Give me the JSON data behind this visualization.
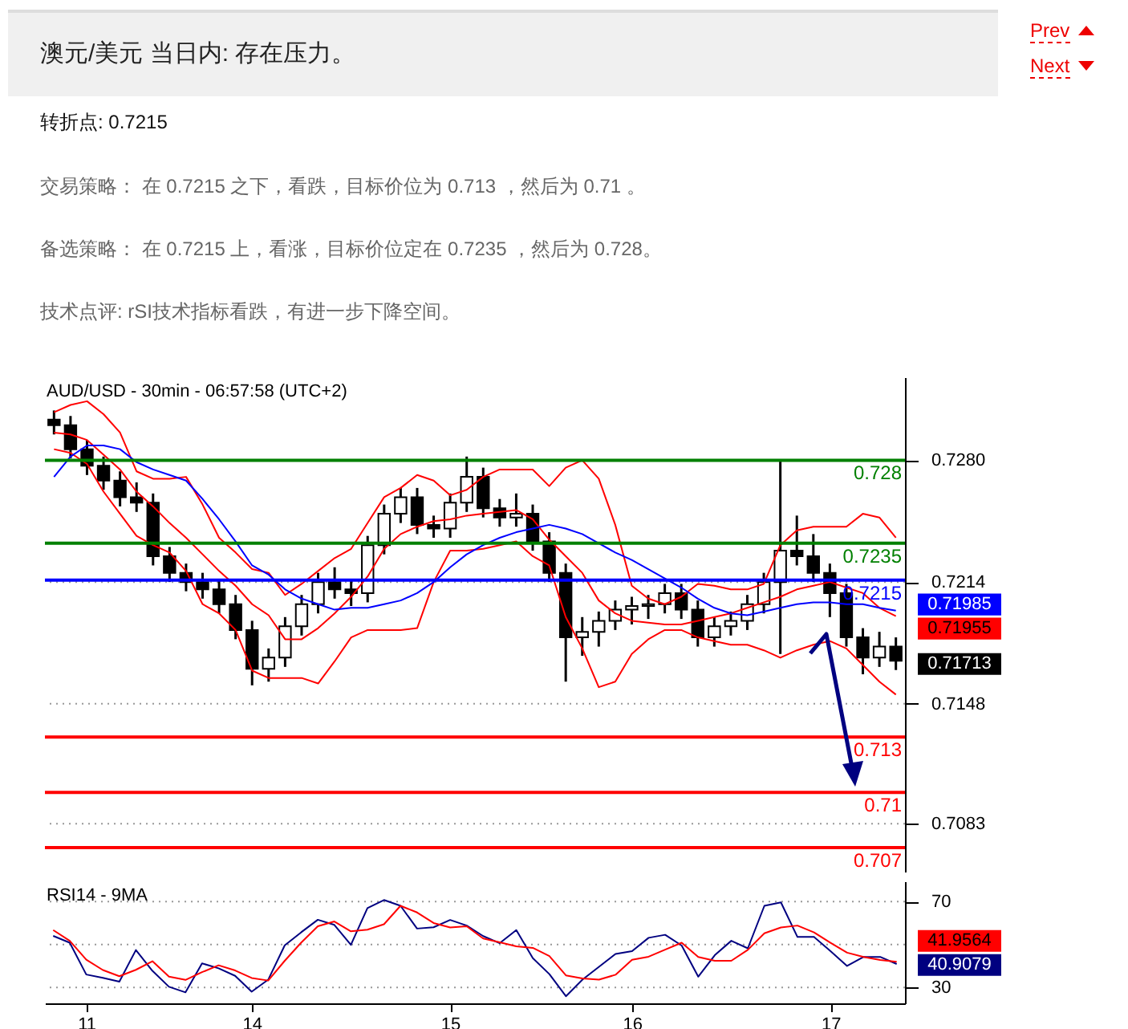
{
  "chart_data": [
    {
      "type": "candlestick",
      "title": "澳元/美元 当日内: 存在压力。",
      "subtitle": "AUD/USD - 30min - 06:57:58 (UTC+2)",
      "annotations": [
        "转折点: 0.7215",
        "交易策略： 在 0.7215 之下，看跌，目标价位为 0.713 ，然后为 0.71 。",
        "备选策略： 在 0.7215 上，看涨，目标价位定在 0.7235 ，然后为 0.728。",
        "技术点评: rSI技术指标看跌，有进一步下降空间。",
        "Prev",
        "Next"
      ],
      "color": "#000000",
      "categories": [
        null,
        null,
        "11",
        null,
        null,
        null,
        null,
        null,
        null,
        null,
        null,
        null,
        "14",
        null,
        null,
        null,
        null,
        null,
        null,
        null,
        null,
        null,
        null,
        null,
        "15",
        null,
        null,
        null,
        null,
        null,
        null,
        null,
        null,
        null,
        null,
        "16",
        null,
        null,
        null,
        null,
        null,
        null,
        null,
        null,
        null,
        null,
        null,
        "17",
        null,
        null,
        null,
        null
      ],
      "ohlc": [
        [
          0.7302,
          0.7307,
          0.7294,
          0.7299
        ],
        [
          0.7299,
          0.7304,
          0.7281,
          0.7286
        ],
        [
          0.7286,
          0.7291,
          0.7272,
          0.7277
        ],
        [
          0.7277,
          0.7282,
          0.7264,
          0.7269
        ],
        [
          0.7269,
          0.7274,
          0.7255,
          0.726
        ],
        [
          0.726,
          0.7268,
          0.7252,
          0.7257
        ],
        [
          0.7257,
          0.7262,
          0.7223,
          0.7228
        ],
        [
          0.7228,
          0.7233,
          0.7214,
          0.7219
        ],
        [
          0.7219,
          0.7224,
          0.7209,
          0.7214
        ],
        [
          0.7214,
          0.7219,
          0.7205,
          0.721
        ],
        [
          0.721,
          0.7215,
          0.7197,
          0.7202
        ],
        [
          0.7202,
          0.7207,
          0.7183,
          0.7188
        ],
        [
          0.7188,
          0.7193,
          0.7158,
          0.7167
        ],
        [
          0.7167,
          0.7178,
          0.716,
          0.7173
        ],
        [
          0.7173,
          0.7195,
          0.7168,
          0.719
        ],
        [
          0.719,
          0.7207,
          0.7185,
          0.7202
        ],
        [
          0.7202,
          0.7219,
          0.7197,
          0.7214
        ],
        [
          0.7214,
          0.7222,
          0.7205,
          0.721
        ],
        [
          0.721,
          0.7215,
          0.7201,
          0.7208
        ],
        [
          0.7208,
          0.7239,
          0.7203,
          0.7234
        ],
        [
          0.7234,
          0.7256,
          0.7229,
          0.7251
        ],
        [
          0.7251,
          0.7265,
          0.7246,
          0.726
        ],
        [
          0.726,
          0.7265,
          0.724,
          0.7245
        ],
        [
          0.7245,
          0.725,
          0.7238,
          0.7243
        ],
        [
          0.7243,
          0.7262,
          0.7238,
          0.7257
        ],
        [
          0.7257,
          0.7282,
          0.7252,
          0.7271
        ],
        [
          0.7271,
          0.7276,
          0.7249,
          0.7254
        ],
        [
          0.7254,
          0.7259,
          0.7244,
          0.7249
        ],
        [
          0.7249,
          0.7262,
          0.7244,
          0.7251
        ],
        [
          0.7251,
          0.7256,
          0.7231,
          0.7236
        ],
        [
          0.7236,
          0.7241,
          0.7214,
          0.7219
        ],
        [
          0.7219,
          0.7224,
          0.716,
          0.7184
        ],
        [
          0.7184,
          0.7195,
          0.7174,
          0.7187
        ],
        [
          0.7187,
          0.7198,
          0.7179,
          0.7193
        ],
        [
          0.7193,
          0.7204,
          0.7188,
          0.7199
        ],
        [
          0.7199,
          0.7206,
          0.7191,
          0.7201
        ],
        [
          0.7201,
          0.7207,
          0.7194,
          0.7202
        ],
        [
          0.7202,
          0.7213,
          0.7197,
          0.7208
        ],
        [
          0.7208,
          0.7213,
          0.7194,
          0.7199
        ],
        [
          0.7199,
          0.7204,
          0.7179,
          0.7184
        ],
        [
          0.7184,
          0.7195,
          0.7179,
          0.719
        ],
        [
          0.719,
          0.7198,
          0.7185,
          0.7193
        ],
        [
          0.7193,
          0.7207,
          0.7188,
          0.7202
        ],
        [
          0.7202,
          0.7219,
          0.7197,
          0.7214
        ],
        [
          0.7214,
          0.728,
          0.7175,
          0.7231
        ],
        [
          0.7231,
          0.725,
          0.7223,
          0.7228
        ],
        [
          0.7228,
          0.724,
          0.7214,
          0.7219
        ],
        [
          0.7219,
          0.7224,
          0.7195,
          0.7208
        ],
        [
          0.7208,
          0.7213,
          0.7179,
          0.7184
        ],
        [
          0.7184,
          0.7189,
          0.7164,
          0.7173
        ],
        [
          0.7173,
          0.7187,
          0.7168,
          0.7179
        ],
        [
          0.7179,
          0.7184,
          0.71663,
          0.71713
        ]
      ],
      "value_labels": [
        null,
        null,
        null,
        null,
        null,
        null,
        null,
        null,
        null,
        null,
        null,
        null,
        null,
        null,
        null,
        null,
        null,
        null,
        null,
        null,
        null,
        null,
        null,
        null,
        null,
        null,
        null,
        null,
        null,
        null,
        null,
        null,
        null,
        null,
        null,
        null,
        null,
        null,
        null,
        null,
        null,
        null,
        null,
        null,
        null,
        null,
        null,
        null,
        null,
        null,
        null,
        "0.71713"
      ],
      "series": [
        {
          "type": "line",
          "color": "#ff0000",
          "values": [
            0.7306,
            0.731,
            0.7312,
            0.7305,
            0.7295,
            0.7274,
            0.727,
            0.727,
            0.7271,
            0.7256,
            0.7238,
            0.723,
            0.7221,
            0.7219,
            0.7207,
            0.7213,
            0.722,
            0.7227,
            0.7232,
            0.7246,
            0.726,
            0.7265,
            0.7272,
            0.7269,
            0.7261,
            0.7264,
            0.7271,
            0.7275,
            0.7275,
            0.7275,
            0.7266,
            0.7276,
            0.728,
            0.727,
            0.7245,
            0.7212,
            0.7205,
            0.7202,
            0.7206,
            0.7213,
            0.7212,
            0.721,
            0.721,
            0.7213,
            0.7234,
            0.7242,
            0.7244,
            0.7244,
            0.7244,
            0.7251,
            0.7249,
            0.7238
          ]
        },
        {
          "type": "line",
          "color": "#ff0000",
          "values": [
            0.7295,
            0.7294,
            0.7291,
            0.7283,
            0.7275,
            0.7263,
            0.7255,
            0.7246,
            0.7238,
            0.7229,
            0.722,
            0.7212,
            0.7202,
            0.7196,
            0.7183,
            0.7183,
            0.7189,
            0.7197,
            0.7206,
            0.7217,
            0.7232,
            0.724,
            0.7244,
            0.7247,
            0.7248,
            0.725,
            0.7251,
            0.7252,
            0.7253,
            0.7248,
            0.7237,
            0.7228,
            0.7219,
            0.7204,
            0.7197,
            0.7193,
            0.7192,
            0.7191,
            0.7191,
            0.7193,
            0.7195,
            0.7197,
            0.72,
            0.7203,
            0.7206,
            0.721,
            0.7212,
            0.7214,
            0.7211,
            0.7208,
            0.72,
            0.71955
          ],
          "value_labels": [
            null,
            null,
            null,
            null,
            null,
            null,
            null,
            null,
            null,
            null,
            null,
            null,
            null,
            null,
            null,
            null,
            null,
            null,
            null,
            null,
            null,
            null,
            null,
            null,
            null,
            null,
            null,
            null,
            null,
            null,
            null,
            null,
            null,
            null,
            null,
            null,
            null,
            null,
            null,
            null,
            null,
            null,
            null,
            null,
            null,
            null,
            null,
            null,
            null,
            null,
            null,
            "0.71955"
          ]
        },
        {
          "type": "line",
          "color": "#ff0000",
          "values": [
            0.7286,
            0.7284,
            0.7278,
            0.7263,
            0.7251,
            0.7239,
            0.7234,
            0.723,
            0.722,
            0.7202,
            0.7197,
            0.7188,
            0.7166,
            0.7162,
            0.7162,
            0.7162,
            0.7159,
            0.7171,
            0.7184,
            0.7188,
            0.7188,
            0.7188,
            0.7189,
            0.7214,
            0.7231,
            0.7231,
            0.7232,
            0.7234,
            0.7236,
            0.7228,
            0.7223,
            0.7195,
            0.7178,
            0.7157,
            0.716,
            0.7175,
            0.7183,
            0.7188,
            0.7188,
            0.7184,
            0.7182,
            0.718,
            0.718,
            0.7177,
            0.7173,
            0.7177,
            0.718,
            0.7182,
            0.7178,
            0.7169,
            0.716,
            0.7153
          ]
        },
        {
          "type": "line",
          "color": "#0000ff",
          "values": [
            0.7271,
            0.7282,
            0.7288,
            0.7288,
            0.7286,
            0.7279,
            0.7275,
            0.7272,
            0.7269,
            0.7259,
            0.7248,
            0.7236,
            0.7223,
            0.7218,
            0.721,
            0.7205,
            0.7202,
            0.7199,
            0.72,
            0.72,
            0.7202,
            0.7204,
            0.7208,
            0.7214,
            0.7222,
            0.7229,
            0.7234,
            0.7238,
            0.7241,
            0.7243,
            0.7245,
            0.7243,
            0.724,
            0.7235,
            0.723,
            0.7226,
            0.7221,
            0.7216,
            0.7211,
            0.7205,
            0.72,
            0.7197,
            0.7196,
            0.7198,
            0.72,
            0.7202,
            0.7203,
            0.7203,
            0.7202,
            0.7202,
            0.72,
            0.71985
          ],
          "value_labels": [
            null,
            null,
            null,
            null,
            null,
            null,
            null,
            null,
            null,
            null,
            null,
            null,
            null,
            null,
            null,
            null,
            null,
            null,
            null,
            null,
            null,
            null,
            null,
            null,
            null,
            null,
            null,
            null,
            null,
            null,
            null,
            null,
            null,
            null,
            null,
            null,
            null,
            null,
            null,
            null,
            null,
            null,
            null,
            null,
            null,
            null,
            null,
            null,
            null,
            null,
            null,
            "0.71985"
          ]
        }
      ],
      "ref_lines": [
        {
          "axis": "y",
          "value": 0.728,
          "label": "0.728",
          "color": "#008000"
        },
        {
          "axis": "y",
          "value": 0.7235,
          "label": "0.7235",
          "color": "#008000"
        },
        {
          "axis": "y",
          "value": 0.7215,
          "label": "0.7215",
          "color": "#0000ff"
        },
        {
          "axis": "y",
          "value": 0.713,
          "label": "0.713",
          "color": "#ff0000"
        },
        {
          "axis": "y",
          "value": 0.71,
          "label": "0.71",
          "color": "#ff0000"
        },
        {
          "axis": "y",
          "value": 0.707,
          "label": "0.707",
          "color": "#ff0000"
        }
      ],
      "ylim": [
        0.7057,
        0.7325
      ],
      "yticks": [
        {
          "value": 0.728,
          "label": "0.7280"
        },
        {
          "value": 0.7214,
          "label": "0.7214"
        },
        {
          "value": 0.7148,
          "label": "0.7148"
        },
        {
          "value": 0.7083,
          "label": "0.7083"
        }
      ],
      "grid": "y",
      "tick_labels": "y"
    },
    {
      "type": "line",
      "title": "RSI14 - 9MA",
      "categories": [
        null,
        null,
        "11",
        null,
        null,
        null,
        null,
        null,
        null,
        null,
        null,
        null,
        "14",
        null,
        null,
        null,
        null,
        null,
        null,
        null,
        null,
        null,
        null,
        null,
        "15",
        null,
        null,
        null,
        null,
        null,
        null,
        null,
        null,
        null,
        null,
        "16",
        null,
        null,
        null,
        null,
        null,
        null,
        null,
        null,
        null,
        null,
        null,
        "17",
        null,
        null,
        null,
        null
      ],
      "series": [
        {
          "color": "#000080",
          "values": [
            54.0,
            50.8,
            36.0,
            34.5,
            32.7,
            47.4,
            37.7,
            30.3,
            27.7,
            41.2,
            38.9,
            35.4,
            28.0,
            33.6,
            49.6,
            55.7,
            61.5,
            59.1,
            49.8,
            66.9,
            70.7,
            68.0,
            57.4,
            58.0,
            61.4,
            58.8,
            53.9,
            50.6,
            56.7,
            43.6,
            36.2,
            25.9,
            33.6,
            39.6,
            45.6,
            46.9,
            53.1,
            54.5,
            49.5,
            35.0,
            45.0,
            51.7,
            48.2,
            68.0,
            69.6,
            53.5,
            53.5,
            46.9,
            40.0,
            44.2,
            44.2,
            40.9079
          ],
          "value_labels": [
            null,
            null,
            null,
            null,
            null,
            null,
            null,
            null,
            null,
            null,
            null,
            null,
            null,
            null,
            null,
            null,
            null,
            null,
            null,
            null,
            null,
            null,
            null,
            null,
            null,
            null,
            null,
            null,
            null,
            null,
            null,
            null,
            null,
            null,
            null,
            null,
            null,
            null,
            null,
            null,
            null,
            null,
            null,
            null,
            null,
            null,
            null,
            null,
            null,
            null,
            null,
            "40.9079"
          ]
        },
        {
          "color": "#ff0000",
          "values": [
            56.7,
            51.7,
            42.9,
            38.1,
            35.2,
            38.2,
            42.2,
            35.0,
            33.5,
            37.1,
            40.3,
            37.9,
            34.4,
            33.2,
            42.4,
            50.9,
            58.5,
            60.7,
            56.1,
            56.9,
            59.4,
            68.0,
            64.9,
            60.0,
            57.9,
            58.5,
            52.8,
            51.0,
            49.1,
            48.4,
            44.6,
            35.6,
            34.2,
            33.6,
            35.9,
            42.9,
            44.3,
            47.6,
            50.8,
            44.2,
            42.4,
            42.4,
            47.5,
            55.2,
            57.9,
            58.8,
            55.6,
            50.8,
            46.2,
            44.2,
            42.8,
            41.9564
          ],
          "value_labels": [
            null,
            null,
            null,
            null,
            null,
            null,
            null,
            null,
            null,
            null,
            null,
            null,
            null,
            null,
            null,
            null,
            null,
            null,
            null,
            null,
            null,
            null,
            null,
            null,
            null,
            null,
            null,
            null,
            null,
            null,
            null,
            null,
            null,
            null,
            null,
            null,
            null,
            null,
            null,
            null,
            null,
            null,
            null,
            null,
            null,
            null,
            null,
            null,
            null,
            null,
            null,
            "41.9564"
          ]
        }
      ],
      "ylim": [
        22.6,
        79.4
      ],
      "yticks": [
        70,
        {
          "value": 50,
          "label": null
        },
        30
      ],
      "grid": "y"
    }
  ]
}
